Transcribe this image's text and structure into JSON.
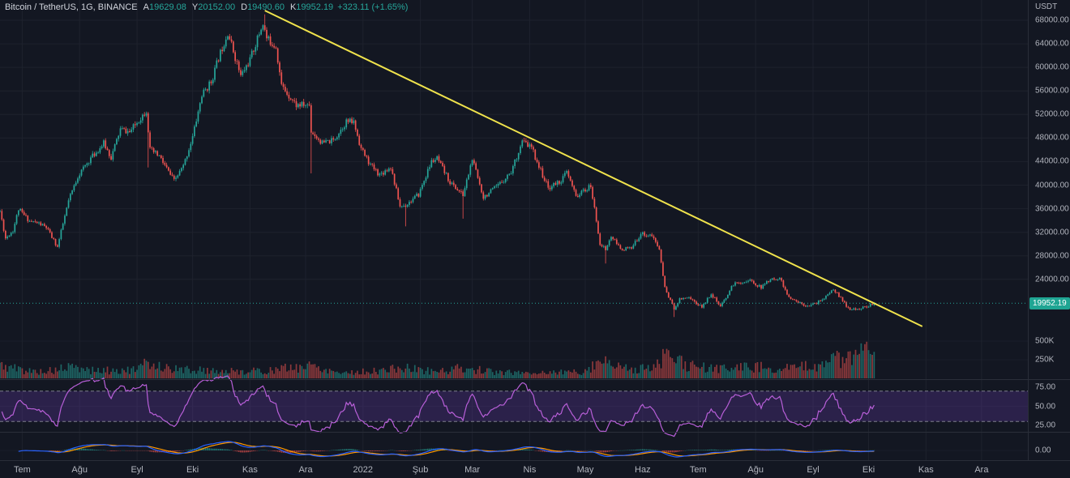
{
  "legend": {
    "symbol": "Bitcoin / TetherUS, 1G, BINANCE",
    "open_label": "A",
    "open": "19629.08",
    "high_label": "Y",
    "high": "20152.00",
    "low_label": "D",
    "low": "19490.60",
    "close_label": "K",
    "close": "19952.19",
    "change": "+323.11 (+1.65%)"
  },
  "axes": {
    "price": {
      "unit": "USDT",
      "ticks": [
        "68000.00",
        "64000.00",
        "60000.00",
        "56000.00",
        "52000.00",
        "48000.00",
        "44000.00",
        "40000.00",
        "36000.00",
        "32000.00",
        "28000.00",
        "24000.00"
      ],
      "badge": "19952.19"
    },
    "volume": {
      "ticks": [
        {
          "label": "500K",
          "value": 500000
        },
        {
          "label": "250K",
          "value": 250000
        }
      ]
    },
    "rsi": {
      "ticks": [
        "75.00",
        "50.00",
        "25.00"
      ],
      "band_levels": [
        70,
        30
      ]
    },
    "macd": {
      "ticks": [
        "0.00"
      ]
    },
    "time": {
      "labels": [
        "Tem",
        "Ağu",
        "Eyl",
        "Eki",
        "Kas",
        "Ara",
        "2022",
        "Şub",
        "Mar",
        "Nis",
        "May",
        "Haz",
        "Tem",
        "Ağu",
        "Eyl",
        "Eki",
        "Kas",
        "Ara"
      ]
    }
  },
  "colors": {
    "background": "#131722",
    "grid": "#1e222d",
    "divider": "#2a2e39",
    "axis_text": "#b2b5be",
    "legend_text": "#d1d4dc",
    "up": "#26a69a",
    "down": "#ef5350",
    "volume_up": "rgba(38,166,154,0.55)",
    "volume_down": "rgba(239,83,80,0.55)",
    "trendline": "#f0e34c",
    "price_line": "#26a69a",
    "badge_bg": "#1fa593",
    "badge_text": "#ffffff",
    "rsi_line": "#b85fd8",
    "rsi_band_fill": "rgba(116,62,196,0.25)",
    "rsi_dashed": "#9598a1",
    "macd_line": "#2962ff",
    "macd_signal": "#ff9800",
    "macd_hist_up": "rgba(38,166,154,0.65)",
    "macd_hist_down": "rgba(239,83,80,0.65)"
  },
  "chart_data": {
    "type": "candlestick",
    "title": "Bitcoin / TetherUS, 1G, BINANCE",
    "timeframe": "1G",
    "quote_unit": "USDT",
    "panes": [
      "price+volume",
      "rsi",
      "macd"
    ],
    "indicators": [
      "Volume",
      "RSI(14)",
      "MACD(12,26,9)"
    ],
    "xlim": [
      "2021-06-19",
      "2022-12-26"
    ],
    "ylim": [
      7050,
      71440
    ],
    "data_range": [
      "2021-06-19",
      "2022-10-04"
    ],
    "last_bar": {
      "open": 19629.08,
      "high": 20152.0,
      "low": 19490.6,
      "close": 19952.19
    },
    "price_anchors": [
      [
        "2021-06-19",
        35600
      ],
      [
        "2021-06-22",
        31000
      ],
      [
        "2021-06-26",
        32300
      ],
      [
        "2021-06-29",
        35900
      ],
      [
        "2021-07-05",
        33900
      ],
      [
        "2021-07-10",
        33500
      ],
      [
        "2021-07-14",
        32800
      ],
      [
        "2021-07-20",
        29500
      ],
      [
        "2021-07-26",
        37300
      ],
      [
        "2021-07-31",
        41500
      ],
      [
        "2021-08-07",
        44600
      ],
      [
        "2021-08-10",
        45600
      ],
      [
        "2021-08-14",
        47100
      ],
      [
        "2021-08-18",
        44700
      ],
      [
        "2021-08-23",
        49500
      ],
      [
        "2021-08-28",
        49000
      ],
      [
        "2021-09-06",
        52700
      ],
      [
        "2021-09-08",
        46000
      ],
      [
        "2021-09-13",
        44900
      ],
      [
        "2021-09-21",
        40700
      ],
      [
        "2021-09-26",
        43200
      ],
      [
        "2021-10-01",
        48200
      ],
      [
        "2021-10-06",
        55300
      ],
      [
        "2021-10-11",
        57500
      ],
      [
        "2021-10-15",
        61600
      ],
      [
        "2021-10-20",
        66000
      ],
      [
        "2021-10-27",
        58500
      ],
      [
        "2021-11-01",
        61300
      ],
      [
        "2021-11-08",
        67500
      ],
      [
        "2021-11-10",
        64900
      ],
      [
        "2021-11-15",
        63600
      ],
      [
        "2021-11-18",
        56900
      ],
      [
        "2021-11-26",
        53600
      ],
      [
        "2021-12-03",
        53600
      ],
      [
        "2021-12-04",
        49200
      ],
      [
        "2021-12-10",
        47100
      ],
      [
        "2021-12-16",
        47600
      ],
      [
        "2021-12-23",
        50800
      ],
      [
        "2021-12-27",
        50700
      ],
      [
        "2021-12-31",
        46200
      ],
      [
        "2022-01-05",
        43400
      ],
      [
        "2022-01-10",
        41800
      ],
      [
        "2022-01-16",
        43100
      ],
      [
        "2022-01-21",
        36400
      ],
      [
        "2022-01-24",
        36600
      ],
      [
        "2022-01-31",
        38400
      ],
      [
        "2022-02-07",
        44000
      ],
      [
        "2022-02-10",
        44500
      ],
      [
        "2022-02-17",
        40500
      ],
      [
        "2022-02-24",
        38300
      ],
      [
        "2022-03-01",
        44400
      ],
      [
        "2022-03-07",
        38000
      ],
      [
        "2022-03-14",
        39600
      ],
      [
        "2022-03-22",
        42300
      ],
      [
        "2022-03-28",
        47400
      ],
      [
        "2022-04-02",
        46400
      ],
      [
        "2022-04-06",
        43200
      ],
      [
        "2022-04-11",
        39500
      ],
      [
        "2022-04-18",
        40800
      ],
      [
        "2022-04-21",
        42200
      ],
      [
        "2022-04-26",
        38100
      ],
      [
        "2022-05-04",
        39800
      ],
      [
        "2022-05-09",
        30100
      ],
      [
        "2022-05-12",
        29000
      ],
      [
        "2022-05-15",
        31300
      ],
      [
        "2022-05-20",
        29200
      ],
      [
        "2022-05-26",
        29200
      ],
      [
        "2022-05-31",
        31800
      ],
      [
        "2022-06-06",
        31400
      ],
      [
        "2022-06-10",
        29100
      ],
      [
        "2022-06-13",
        22500
      ],
      [
        "2022-06-18",
        19000
      ],
      [
        "2022-06-21",
        20700
      ],
      [
        "2022-06-26",
        21000
      ],
      [
        "2022-06-30",
        19900
      ],
      [
        "2022-07-03",
        19300
      ],
      [
        "2022-07-08",
        21600
      ],
      [
        "2022-07-13",
        19300
      ],
      [
        "2022-07-20",
        23200
      ],
      [
        "2022-07-29",
        23800
      ],
      [
        "2022-08-04",
        22600
      ],
      [
        "2022-08-08",
        23800
      ],
      [
        "2022-08-14",
        24300
      ],
      [
        "2022-08-19",
        20800
      ],
      [
        "2022-08-28",
        19600
      ],
      [
        "2022-09-02",
        19800
      ],
      [
        "2022-09-09",
        21300
      ],
      [
        "2022-09-12",
        22400
      ],
      [
        "2022-09-19",
        19500
      ],
      [
        "2022-09-21",
        18800
      ],
      [
        "2022-09-27",
        19100
      ],
      [
        "2022-09-30",
        19400
      ],
      [
        "2022-10-04",
        19952.19
      ]
    ],
    "wick_overrides": [
      {
        "date": "2021-09-07",
        "low": 43000
      },
      {
        "date": "2021-11-09",
        "high": 69000
      },
      {
        "date": "2021-12-04",
        "low": 42000
      },
      {
        "date": "2022-01-24",
        "low": 33000
      },
      {
        "date": "2022-02-24",
        "low": 34300
      },
      {
        "date": "2022-05-12",
        "low": 26700
      },
      {
        "date": "2022-06-18",
        "low": 17600
      }
    ],
    "volume_anchors": [
      [
        "2021-06-19",
        190000
      ],
      [
        "2021-06-26",
        150000
      ],
      [
        "2021-07-06",
        100000
      ],
      [
        "2021-07-18",
        110000
      ],
      [
        "2021-07-26",
        160000
      ],
      [
        "2021-08-10",
        110000
      ],
      [
        "2021-09-01",
        120000
      ],
      [
        "2021-09-07",
        230000
      ],
      [
        "2021-09-21",
        130000
      ],
      [
        "2021-10-06",
        120000
      ],
      [
        "2021-10-20",
        100000
      ],
      [
        "2021-11-10",
        110000
      ],
      [
        "2021-12-04",
        190000
      ],
      [
        "2021-12-20",
        85000
      ],
      [
        "2022-01-06",
        100000
      ],
      [
        "2022-01-22",
        150000
      ],
      [
        "2022-02-10",
        100000
      ],
      [
        "2022-02-24",
        150000
      ],
      [
        "2022-03-15",
        85000
      ],
      [
        "2022-04-10",
        85000
      ],
      [
        "2022-05-01",
        100000
      ],
      [
        "2022-05-10",
        290000
      ],
      [
        "2022-05-20",
        150000
      ],
      [
        "2022-06-05",
        140000
      ],
      [
        "2022-06-14",
        330000
      ],
      [
        "2022-06-25",
        180000
      ],
      [
        "2022-07-10",
        140000
      ],
      [
        "2022-07-26",
        170000
      ],
      [
        "2022-08-10",
        160000
      ],
      [
        "2022-08-20",
        140000
      ],
      [
        "2022-09-06",
        200000
      ],
      [
        "2022-09-13",
        320000
      ],
      [
        "2022-09-22",
        260000
      ],
      [
        "2022-09-29",
        480000
      ],
      [
        "2022-10-04",
        350000
      ]
    ],
    "annotations": {
      "trendline": {
        "from": [
          "2021-11-09",
          69650
        ],
        "to": [
          "2022-10-30",
          16000
        ]
      }
    }
  }
}
